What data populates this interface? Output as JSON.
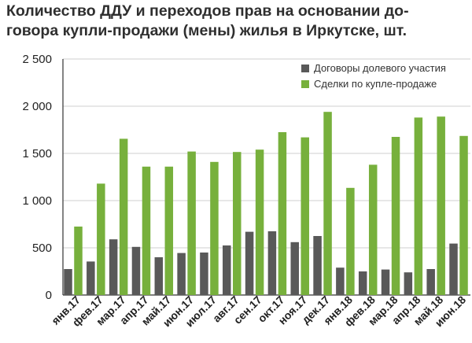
{
  "chart_data": {
    "type": "bar",
    "title_line1": "Количество ДДУ и переходов прав на основании до-",
    "title_line2": "говора купли-продажи (мены) жилья в Иркутске, шт.",
    "categories": [
      "янв.17",
      "фев.17",
      "мар.17",
      "апр.17",
      "май.17",
      "июн.17",
      "июл.17",
      "авг.17",
      "сен.17",
      "окт.17",
      "ноя.17",
      "дек.17",
      "янв.18",
      "фев.18",
      "мар.18",
      "апр.18",
      "май.18",
      "июн.18"
    ],
    "series": [
      {
        "name": "Договоры долевого участия",
        "color": "#595959",
        "values": [
          275,
          355,
          590,
          510,
          400,
          445,
          450,
          525,
          670,
          675,
          560,
          625,
          290,
          250,
          270,
          240,
          275,
          545
        ]
      },
      {
        "name": "Сделки по купле-продаже",
        "color": "#77b03c",
        "values": [
          725,
          1180,
          1655,
          1360,
          1360,
          1520,
          1410,
          1515,
          1540,
          1725,
          1670,
          1940,
          1135,
          1380,
          1675,
          1880,
          1890,
          1685
        ]
      }
    ],
    "ylim": [
      0,
      2500
    ],
    "yticks": [
      0,
      500,
      1000,
      1500,
      2000,
      2500
    ],
    "ytick_labels": [
      "0",
      "500",
      "1 000",
      "1 500",
      "2 000",
      "2 500"
    ],
    "grid": true,
    "legend_position": "top-right"
  }
}
